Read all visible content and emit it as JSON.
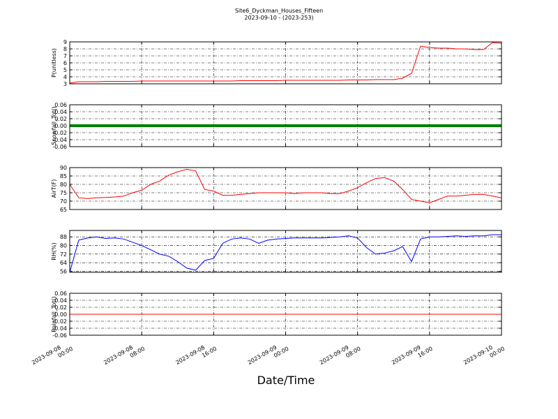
{
  "title": "Site6_Dyckman_Houses_Fifteen",
  "subtitle": "2023-09-10 - (2023-253)",
  "xlabel": "Date/Time",
  "xlim": [
    "2023-09-08 00:00",
    "2023-09-10 00:00"
  ],
  "xticks": [
    "2023-09-08 00:00",
    "2023-09-08 08:00",
    "2023-09-08 16:00",
    "2023-09-09 00:00",
    "2023-09-09 08:00",
    "2023-09-09 16:00",
    "2023-09-10 00:00"
  ],
  "x": [
    "2023-09-08 00:00",
    "2023-09-08 01:00",
    "2023-09-08 02:00",
    "2023-09-08 03:00",
    "2023-09-08 04:00",
    "2023-09-08 05:00",
    "2023-09-08 06:00",
    "2023-09-08 07:00",
    "2023-09-08 08:00",
    "2023-09-08 09:00",
    "2023-09-08 10:00",
    "2023-09-08 11:00",
    "2023-09-08 12:00",
    "2023-09-08 13:00",
    "2023-09-08 14:00",
    "2023-09-08 15:00",
    "2023-09-08 16:00",
    "2023-09-08 17:00",
    "2023-09-08 18:00",
    "2023-09-08 19:00",
    "2023-09-08 20:00",
    "2023-09-08 21:00",
    "2023-09-08 22:00",
    "2023-09-08 23:00",
    "2023-09-09 00:00",
    "2023-09-09 01:00",
    "2023-09-09 02:00",
    "2023-09-09 03:00",
    "2023-09-09 04:00",
    "2023-09-09 05:00",
    "2023-09-09 06:00",
    "2023-09-09 07:00",
    "2023-09-09 08:00",
    "2023-09-09 09:00",
    "2023-09-09 10:00",
    "2023-09-09 11:00",
    "2023-09-09 12:00",
    "2023-09-09 13:00",
    "2023-09-09 14:00",
    "2023-09-09 15:00",
    "2023-09-09 16:00",
    "2023-09-09 17:00",
    "2023-09-09 18:00",
    "2023-09-09 19:00",
    "2023-09-09 20:00",
    "2023-09-09 21:00",
    "2023-09-09 22:00",
    "2023-09-09 23:00",
    "2023-09-10 00:00"
  ],
  "chart_data": [
    {
      "type": "line",
      "ylabel": "P(unitless)",
      "color": "#ff0000",
      "grid": true,
      "ylim": [
        3,
        9
      ],
      "yticks": [
        3,
        4,
        5,
        6,
        7,
        8,
        9
      ],
      "values": [
        3.1,
        3.3,
        3.3,
        3.3,
        3.35,
        3.35,
        3.35,
        3.35,
        3.4,
        3.4,
        3.4,
        3.4,
        3.4,
        3.4,
        3.4,
        3.4,
        3.4,
        3.4,
        3.4,
        3.45,
        3.45,
        3.45,
        3.45,
        3.45,
        3.5,
        3.5,
        3.5,
        3.5,
        3.5,
        3.5,
        3.5,
        3.55,
        3.55,
        3.55,
        3.6,
        3.6,
        3.6,
        3.8,
        4.5,
        8.4,
        8.2,
        8.1,
        8.1,
        8.0,
        8.0,
        7.9,
        7.9,
        8.9,
        8.8
      ]
    },
    {
      "type": "line",
      "ylabel": "Snowfall_Tot()",
      "color": "#008000",
      "markers": true,
      "grid": true,
      "ylim": [
        -0.06,
        0.06
      ],
      "yticks": [
        -0.06,
        -0.04,
        -0.02,
        {
          "value": 0,
          "label": "0.00"
        },
        0.02,
        0.04,
        0.06
      ],
      "values": [
        0,
        0,
        0,
        0,
        0,
        0,
        0,
        0,
        0,
        0,
        0,
        0,
        0,
        0,
        0,
        0,
        0,
        0,
        0,
        0,
        0,
        0,
        0,
        0,
        0,
        0,
        0,
        0,
        0,
        0,
        0,
        0,
        0,
        0,
        0,
        0,
        0,
        0,
        0,
        0,
        0,
        0,
        0,
        0,
        0,
        0,
        0,
        0,
        0
      ]
    },
    {
      "type": "line",
      "ylabel": "AirT(F)",
      "color": "#ff0000",
      "grid": true,
      "ylim": [
        65,
        90
      ],
      "yticks": [
        65,
        70,
        75,
        80,
        85,
        90
      ],
      "values": [
        80,
        72,
        71.5,
        72,
        72.2,
        72.5,
        73,
        75,
        76.5,
        80,
        82,
        85.5,
        87.5,
        89,
        88,
        77,
        76,
        73.5,
        73.5,
        74,
        74.5,
        75,
        75,
        75,
        75,
        74.5,
        75,
        75,
        75,
        74.5,
        74.5,
        76,
        78,
        81,
        83.5,
        84,
        82,
        77,
        71,
        70,
        69,
        71,
        73,
        73,
        73.5,
        74,
        74,
        73,
        72
      ]
    },
    {
      "type": "line",
      "ylabel": "RH(%)",
      "color": "#0000ff",
      "grid": true,
      "ylim": [
        55,
        94
      ],
      "yticks": [
        56,
        64,
        72,
        80,
        88
      ],
      "values": [
        55,
        85,
        87,
        88,
        86.5,
        87,
        86,
        83,
        80,
        76,
        72,
        70,
        65,
        59,
        57,
        66,
        68,
        82,
        86,
        87,
        86,
        82,
        85,
        86,
        86.5,
        87,
        87,
        87,
        87,
        87.5,
        88,
        89,
        87,
        78,
        72,
        73,
        75,
        79,
        65,
        86,
        88,
        88,
        88.5,
        89,
        88.5,
        89,
        89,
        90,
        90
      ]
    },
    {
      "type": "line",
      "ylabel": "Rainfall_Tot()",
      "color": "#ff0000",
      "grid": true,
      "ylim": [
        -0.06,
        0.06
      ],
      "yticks": [
        -0.06,
        -0.04,
        -0.02,
        {
          "value": 0,
          "label": "0.00"
        },
        0.02,
        0.04,
        0.06
      ],
      "values": [
        0,
        0,
        0,
        0,
        0,
        0,
        0,
        0,
        0,
        0,
        0,
        0,
        0,
        0,
        0,
        0,
        0,
        0,
        0,
        0,
        0,
        0,
        0,
        0,
        0,
        0,
        0,
        0,
        0,
        0,
        0,
        0,
        0,
        0,
        0,
        0,
        0,
        0,
        0,
        0,
        0,
        0,
        0,
        0,
        0,
        0,
        0,
        0,
        0
      ]
    }
  ]
}
